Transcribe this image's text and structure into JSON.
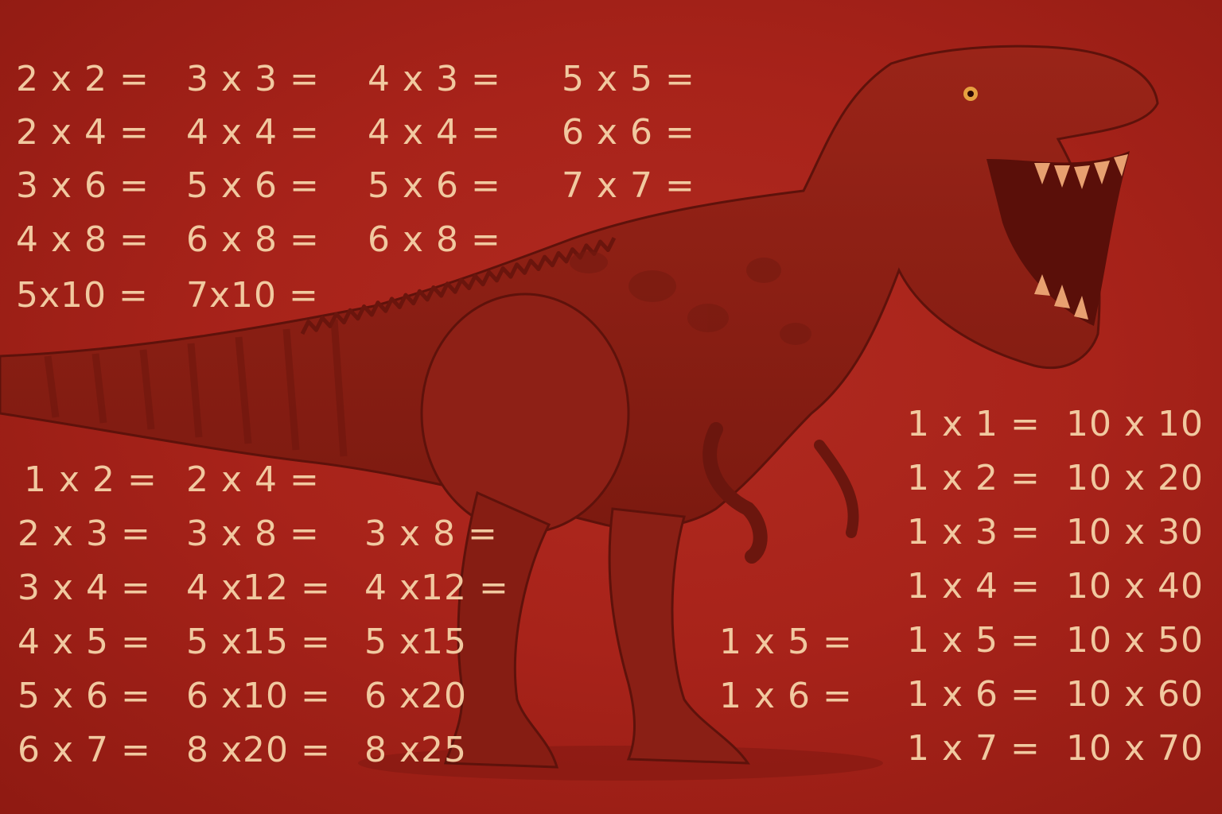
{
  "colors": {
    "background": "#a8231a",
    "text": "#f1c9a0",
    "dinosaur": "#8a1d14"
  },
  "illustration": "tyrannosaurus",
  "blocks": {
    "top_left": [
      [
        "2 x 2 =",
        "2 x 4 =",
        "3 x 6 =",
        "4 x 8 =",
        "5x10 ="
      ],
      [
        "3 x 3 =",
        "4 x 4 =",
        "5 x 6 =",
        "6 x 8 =",
        "7x10 ="
      ],
      [
        "4 x 3 =",
        "4 x 4 =",
        "5 x 6 =",
        "6 x 8 ="
      ],
      [
        "5 x 5 =",
        "6 x 6 =",
        "7 x 7 ="
      ]
    ],
    "bottom_left": [
      [
        "1 x 2 =",
        "2 x 3 =",
        "3 x 4 =",
        "4 x 5 =",
        "5 x 6 =",
        "6 x 7 ="
      ],
      [
        "2 x 4 =",
        "3 x 8 =",
        "4 x12 =",
        "5 x15 =",
        "6 x10 =",
        "8 x20 ="
      ],
      [
        "3 x 8 =",
        "4 x12 =",
        "5 x15",
        "6 x20",
        "8 x25"
      ]
    ],
    "bottom_middle": [
      "1 x 5 =",
      "1 x 6 ="
    ],
    "bottom_right": [
      [
        "1 x 1 =",
        "1 x 2 =",
        "1 x 3 =",
        "1 x 4 =",
        "1 x 5 =",
        "1 x 6 =",
        "1 x 7 ="
      ],
      [
        "10 x 10",
        "10 x 20",
        "10 x 30",
        "10 x 40",
        "10 x 50",
        "10 x 60",
        "10 x 70"
      ]
    ]
  }
}
